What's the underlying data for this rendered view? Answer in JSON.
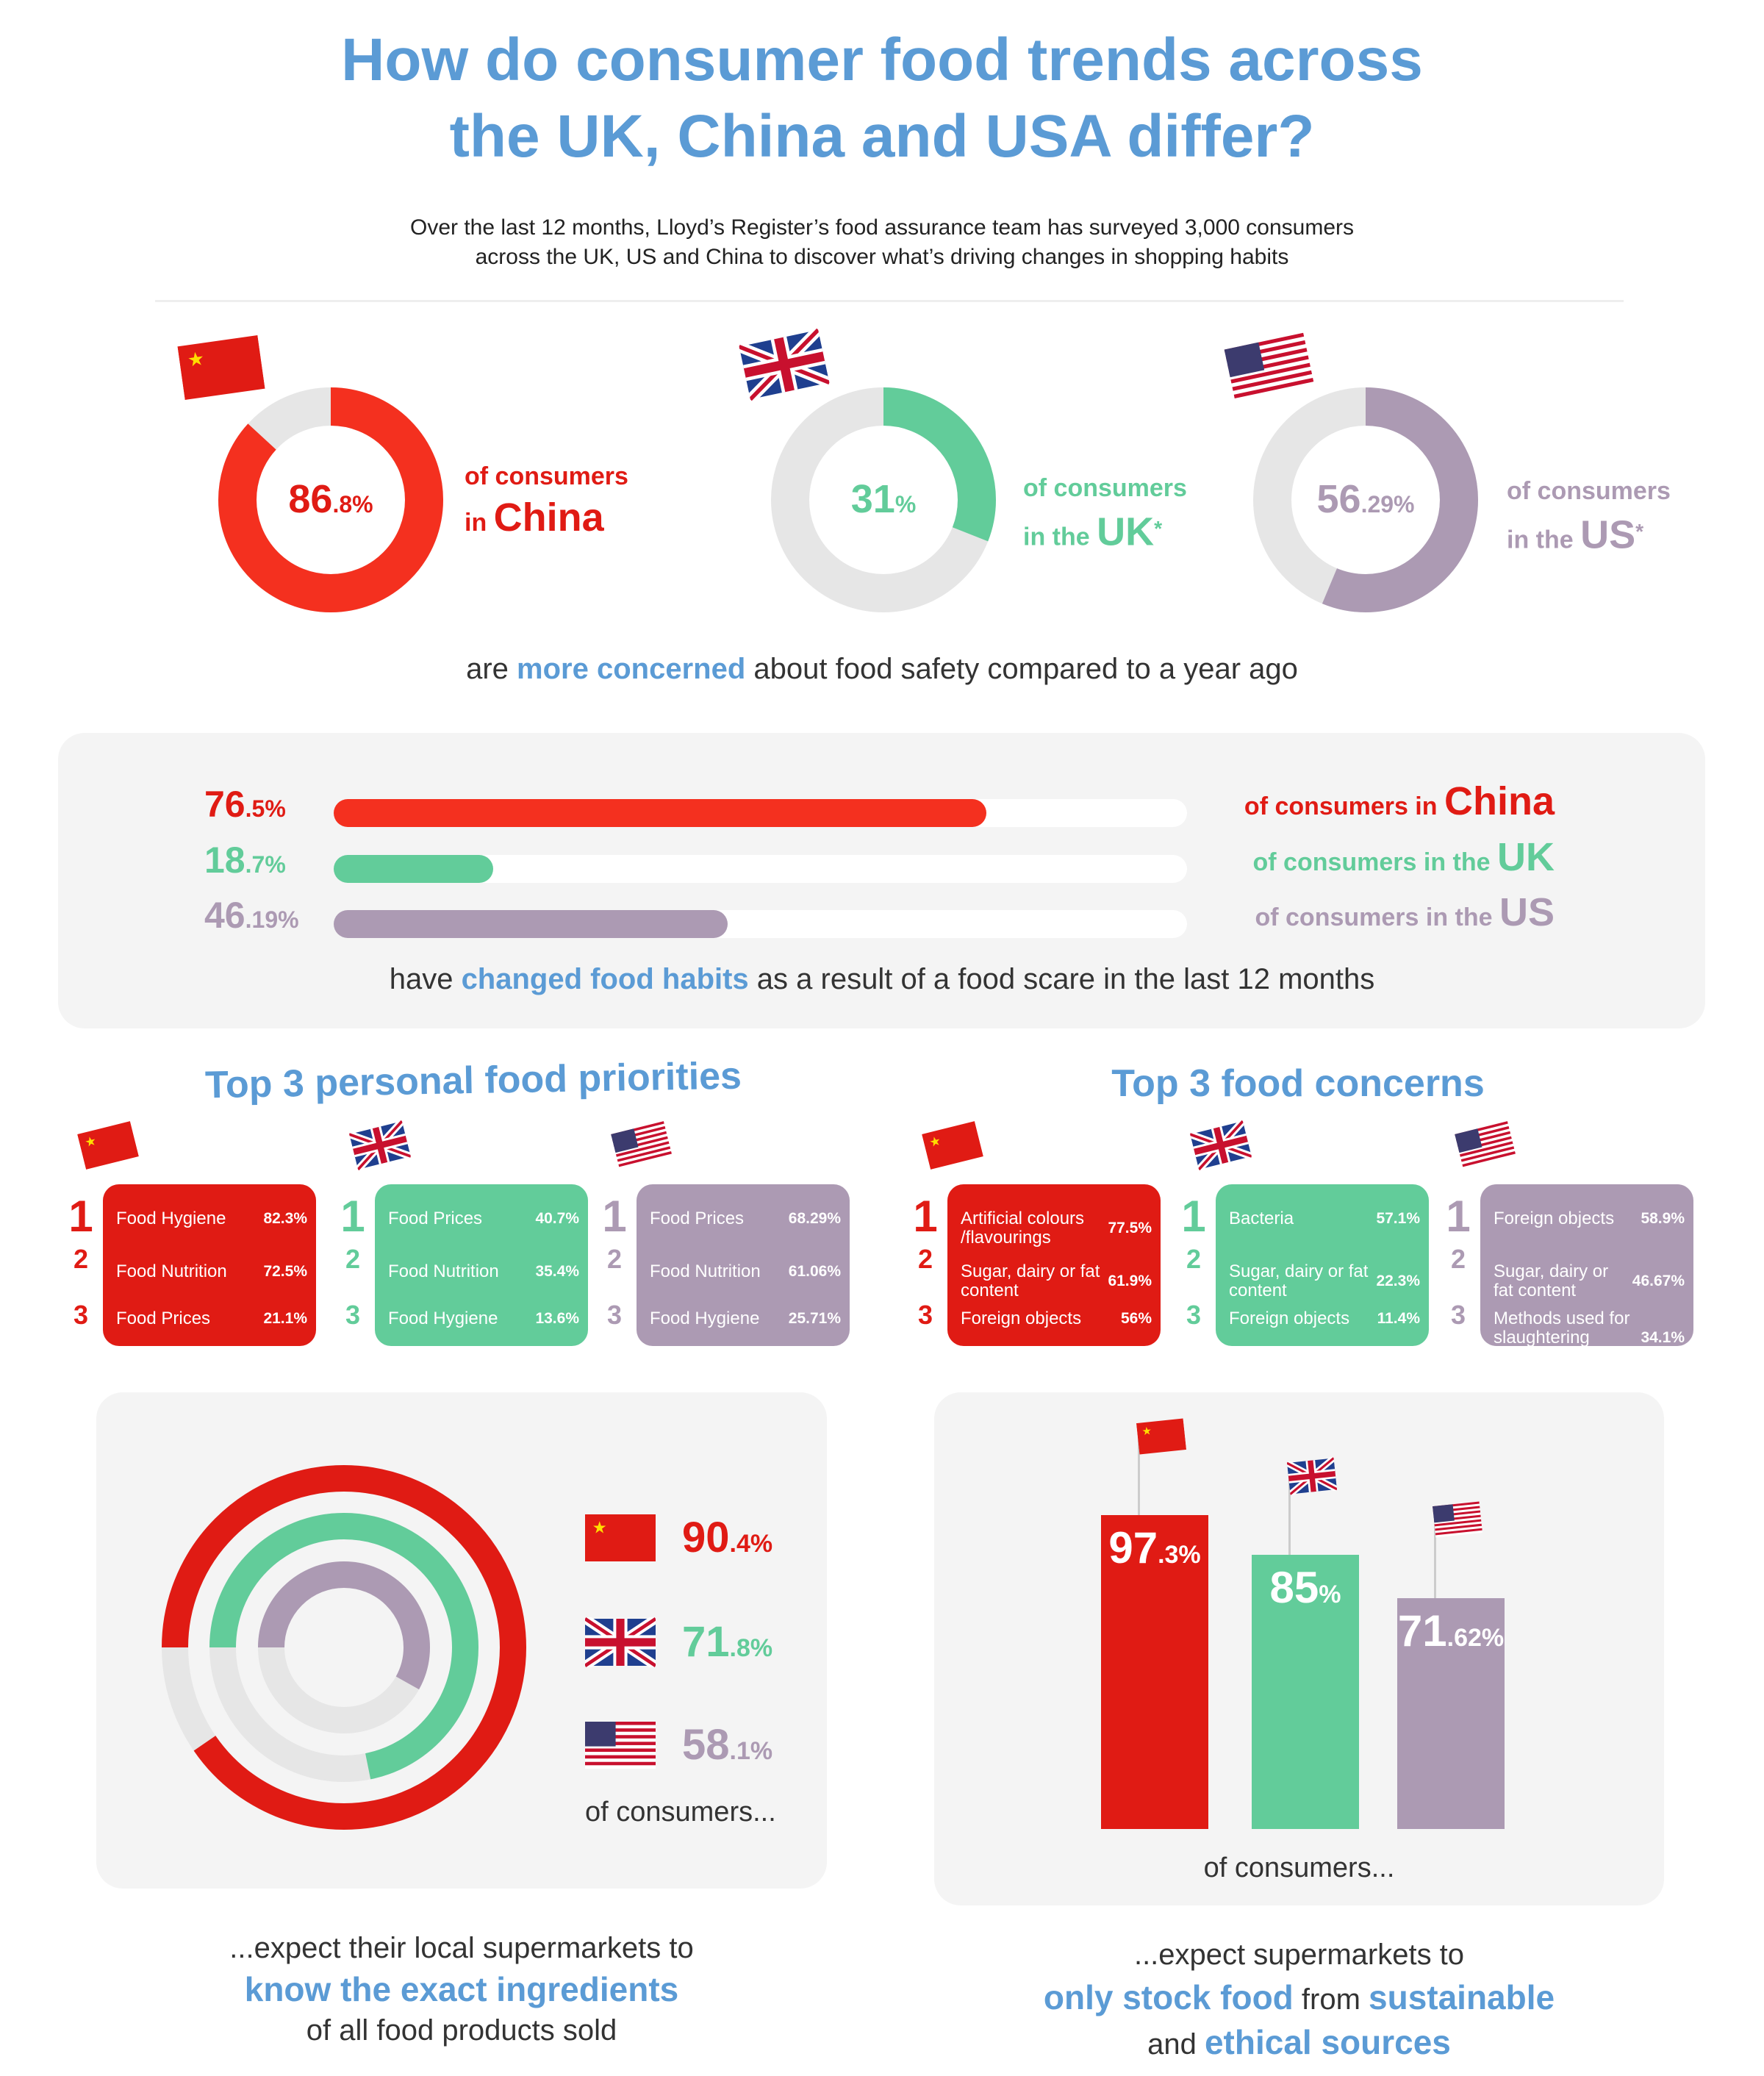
{
  "title": {
    "line1": "How do consumer food trends across",
    "line2": "the UK, China and USA differ?"
  },
  "subtitle": {
    "line1": "Over the last 12 months, Lloyd’s Register’s food assurance team has surveyed 3,000 consumers",
    "line2": "across the UK, US and China to discover what’s driving changes in shopping habits"
  },
  "colors": {
    "china": "#e01b14",
    "china_donut": "#f4301f",
    "uk": "#62cc9a",
    "us": "#ac9ab3",
    "track": "#e6e6e6",
    "accent": "#5b9bd5"
  },
  "concerned": {
    "items": [
      {
        "country": "China",
        "whole": "86",
        "decimal": ".8%",
        "value": 86.8,
        "label1": "of consumers",
        "label2": "in ",
        "label_big": "China",
        "star": ""
      },
      {
        "country": "UK",
        "whole": "31",
        "decimal": "%",
        "value": 31,
        "label1": "of consumers",
        "label2": "in the ",
        "label_big": "UK",
        "star": "*"
      },
      {
        "country": "US",
        "whole": "56",
        "decimal": ".29%",
        "value": 56.29,
        "label1": "of consumers",
        "label2": "in the ",
        "label_big": "US",
        "star": "*"
      }
    ],
    "caption_pre": "are ",
    "caption_bold": "more concerned",
    "caption_post": " about food safety compared to a year ago"
  },
  "habits": {
    "items": [
      {
        "whole": "76",
        "decimal": ".5%",
        "value": 76.5,
        "label": "of consumers in ",
        "label_big": "China"
      },
      {
        "whole": "18",
        "decimal": ".7%",
        "value": 18.7,
        "label": "of consumers in the ",
        "label_big": "UK"
      },
      {
        "whole": "46",
        "decimal": ".19%",
        "value": 46.19,
        "label": "of consumers in the ",
        "label_big": "US"
      }
    ],
    "caption_pre": "have ",
    "caption_bold": "changed food habits",
    "caption_post": " as a result of a food scare in the last 12 months"
  },
  "priorities": {
    "heading": "Top 3 personal food priorities",
    "countries": [
      {
        "country": "China",
        "items": [
          {
            "rank": "1",
            "label": "Food Hygiene",
            "value": "82.3%"
          },
          {
            "rank": "2",
            "label": "Food Nutrition",
            "value": "72.5%"
          },
          {
            "rank": "3",
            "label": "Food Prices",
            "value": "21.1%"
          }
        ]
      },
      {
        "country": "UK",
        "items": [
          {
            "rank": "1",
            "label": "Food Prices",
            "value": "40.7%"
          },
          {
            "rank": "2",
            "label": "Food Nutrition",
            "value": "35.4%"
          },
          {
            "rank": "3",
            "label": "Food Hygiene",
            "value": "13.6%"
          }
        ]
      },
      {
        "country": "US",
        "items": [
          {
            "rank": "1",
            "label": "Food Prices",
            "value": "68.29%"
          },
          {
            "rank": "2",
            "label": "Food Nutrition",
            "value": "61.06%"
          },
          {
            "rank": "3",
            "label": "Food Hygiene",
            "value": "25.71%"
          }
        ]
      }
    ]
  },
  "concerns": {
    "heading": "Top 3 food concerns",
    "countries": [
      {
        "country": "China",
        "items": [
          {
            "rank": "1",
            "label": "Artificial colours /flavourings",
            "value": "77.5%"
          },
          {
            "rank": "2",
            "label": "Sugar, dairy or fat content",
            "value": "61.9%"
          },
          {
            "rank": "3",
            "label": "Foreign objects",
            "value": "56%"
          }
        ]
      },
      {
        "country": "UK",
        "items": [
          {
            "rank": "1",
            "label": "Bacteria",
            "value": "57.1%"
          },
          {
            "rank": "2",
            "label": "Sugar, dairy or fat content",
            "value": "22.3%"
          },
          {
            "rank": "3",
            "label": "Foreign objects",
            "value": "11.4%"
          }
        ]
      },
      {
        "country": "US",
        "items": [
          {
            "rank": "1",
            "label": "Foreign objects",
            "value": "58.9%"
          },
          {
            "rank": "2",
            "label": "Sugar, dairy or fat content",
            "value": "46.67%"
          },
          {
            "rank": "3",
            "label": "Methods used for slaughtering animals",
            "value": "34.1%"
          }
        ]
      }
    ]
  },
  "ingredients": {
    "items": [
      {
        "country": "China",
        "whole": "90",
        "decimal": ".4%",
        "value": 90.4
      },
      {
        "country": "UK",
        "whole": "71",
        "decimal": ".8%",
        "value": 71.8
      },
      {
        "country": "US",
        "whole": "58",
        "decimal": ".1%",
        "value": 58.1
      }
    ],
    "of_consumers": "of consumers...",
    "caption1": "...expect their local supermarkets to",
    "caption_bold": "know the exact ingredients",
    "caption3": "of all food products sold"
  },
  "chart_data": {
    "type": "bar",
    "categories": [
      "China",
      "UK",
      "US"
    ],
    "values": [
      97.3,
      85,
      71.62
    ],
    "labels": [
      {
        "whole": "97",
        "decimal": ".3%"
      },
      {
        "whole": "85",
        "decimal": "%"
      },
      {
        "whole": "71",
        "decimal": ".62%"
      }
    ],
    "xlabel": "of consumers...",
    "ylim": [
      0,
      100
    ]
  },
  "sustainable": {
    "caption1": "...expect supermarkets to",
    "bold1": "only stock food",
    "mid": " from ",
    "bold2": "sustainable",
    "line3_pre": "and ",
    "bold3": "ethical sources"
  }
}
